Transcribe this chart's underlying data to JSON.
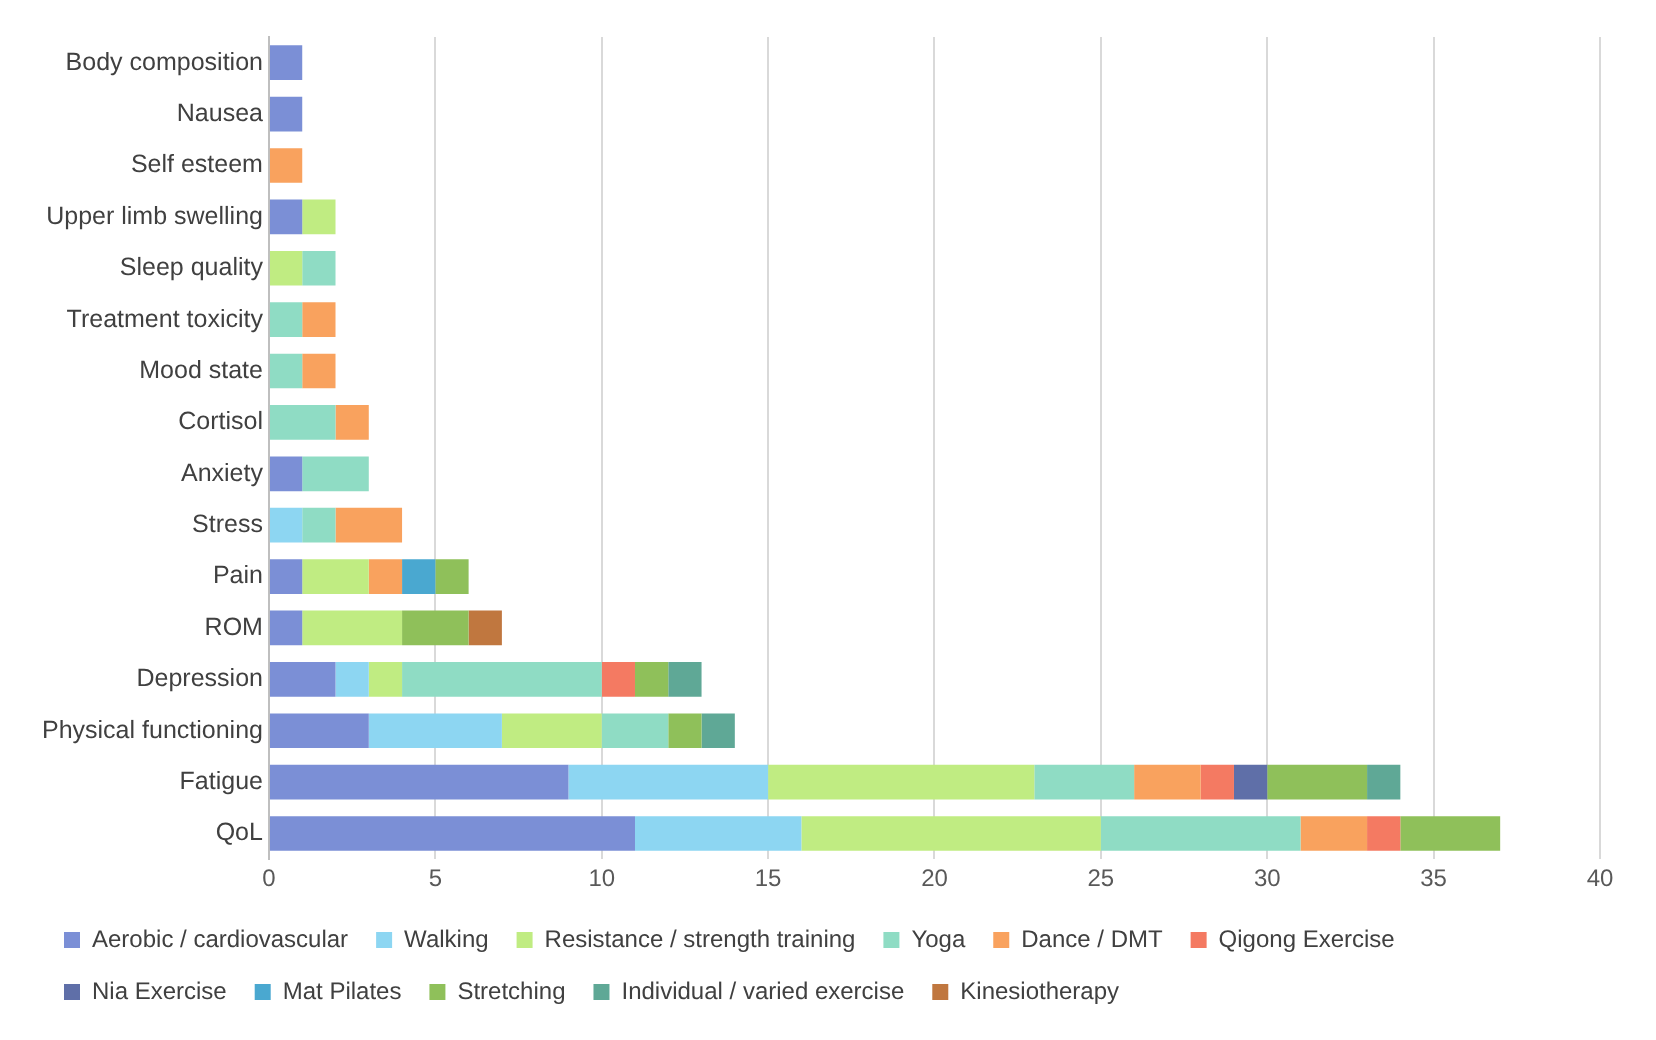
{
  "chart_data": {
    "type": "bar",
    "orientation": "horizontal",
    "stacked": true,
    "categories": [
      "Body composition",
      "Nausea",
      "Self esteem",
      "Upper limb swelling",
      "Sleep quality",
      "Treatment toxicity",
      "Mood state",
      "Cortisol",
      "Anxiety",
      "Stress",
      "Pain",
      "ROM",
      "Depression",
      "Physical functioning",
      "Fatigue",
      "QoL"
    ],
    "series": [
      {
        "name": "Aerobic / cardiovascular",
        "color": "#7b8fd6",
        "values": [
          1,
          1,
          null,
          1,
          null,
          null,
          null,
          null,
          1,
          null,
          1,
          1,
          2,
          3,
          9,
          11
        ]
      },
      {
        "name": "Walking",
        "color": "#8dd6f2",
        "values": [
          null,
          null,
          null,
          null,
          null,
          null,
          null,
          null,
          null,
          1,
          null,
          null,
          1,
          4,
          6,
          5
        ]
      },
      {
        "name": "Resistance / strength training",
        "color": "#c0ec82",
        "values": [
          null,
          null,
          null,
          1,
          1,
          null,
          null,
          null,
          null,
          null,
          2,
          3,
          1,
          3,
          8,
          9
        ]
      },
      {
        "name": "Yoga",
        "color": "#8fdcc4",
        "values": [
          null,
          null,
          null,
          null,
          1,
          1,
          1,
          2,
          2,
          1,
          null,
          null,
          6,
          2,
          3,
          6
        ]
      },
      {
        "name": "Dance / DMT",
        "color": "#f9a25e",
        "values": [
          null,
          null,
          1,
          null,
          null,
          1,
          1,
          1,
          null,
          2,
          1,
          null,
          null,
          null,
          2,
          2
        ]
      },
      {
        "name": "Qigong Exercise",
        "color": "#f47a62",
        "values": [
          null,
          null,
          null,
          null,
          null,
          null,
          null,
          null,
          null,
          null,
          null,
          null,
          1,
          null,
          1,
          1
        ]
      },
      {
        "name": "Nia Exercise",
        "color": "#5f6fa8",
        "values": [
          null,
          null,
          null,
          null,
          null,
          null,
          null,
          null,
          null,
          null,
          null,
          null,
          null,
          null,
          1,
          null
        ]
      },
      {
        "name": "Mat Pilates",
        "color": "#4aa8d0",
        "values": [
          null,
          null,
          null,
          null,
          null,
          null,
          null,
          null,
          null,
          null,
          1,
          null,
          null,
          null,
          null,
          null
        ]
      },
      {
        "name": "Stretching",
        "color": "#8fc05a",
        "values": [
          null,
          null,
          null,
          null,
          null,
          null,
          null,
          null,
          null,
          null,
          1,
          2,
          1,
          1,
          3,
          3
        ]
      },
      {
        "name": "Individual / varied exercise",
        "color": "#5fa896",
        "values": [
          null,
          null,
          null,
          null,
          null,
          null,
          null,
          null,
          null,
          null,
          null,
          null,
          1,
          1,
          1,
          null
        ]
      },
      {
        "name": "Kinesiotherapy",
        "color": "#c0773f",
        "values": [
          null,
          null,
          null,
          null,
          null,
          null,
          null,
          null,
          null,
          null,
          null,
          1,
          null,
          null,
          null,
          null
        ]
      }
    ],
    "xlim": [
      0,
      40
    ],
    "xticks": [
      0,
      5,
      10,
      15,
      20,
      25,
      30,
      35,
      40
    ],
    "grid": "x",
    "legend": "bottom"
  }
}
